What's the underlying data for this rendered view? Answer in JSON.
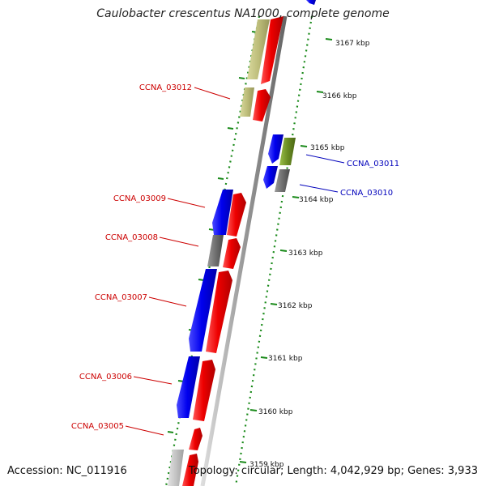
{
  "title": "Caulobacter crescentus NA1000, complete genome",
  "accession": "Accession: NC_011916",
  "summary": "Topology: circular; Length: 4,042,929 bp; Genes: 3,933",
  "colors": {
    "forward_cds": "#ee0000",
    "reverse_cds": "#0000ee",
    "rrna_trna": "#bdbd7a",
    "gray_feature": "#707070",
    "olive_feature": "#6b8e23",
    "ruler": "#1a8a1a",
    "left_label": "#cc0000",
    "right_label": "#0000bb"
  },
  "ruler_labels": [
    "3167 kbp",
    "3166 kbp",
    "3165 kbp",
    "3164 kbp",
    "3163 kbp",
    "3162 kbp",
    "3161 kbp",
    "3160 kbp",
    "3159 kbp"
  ],
  "gene_labels_left": [
    "CCNA_03012",
    "CCNA_03009",
    "CCNA_03008",
    "CCNA_03007",
    "CCNA_03006",
    "CCNA_03005"
  ],
  "gene_labels_right": [
    "CCNA_03011",
    "CCNA_03010"
  ]
}
